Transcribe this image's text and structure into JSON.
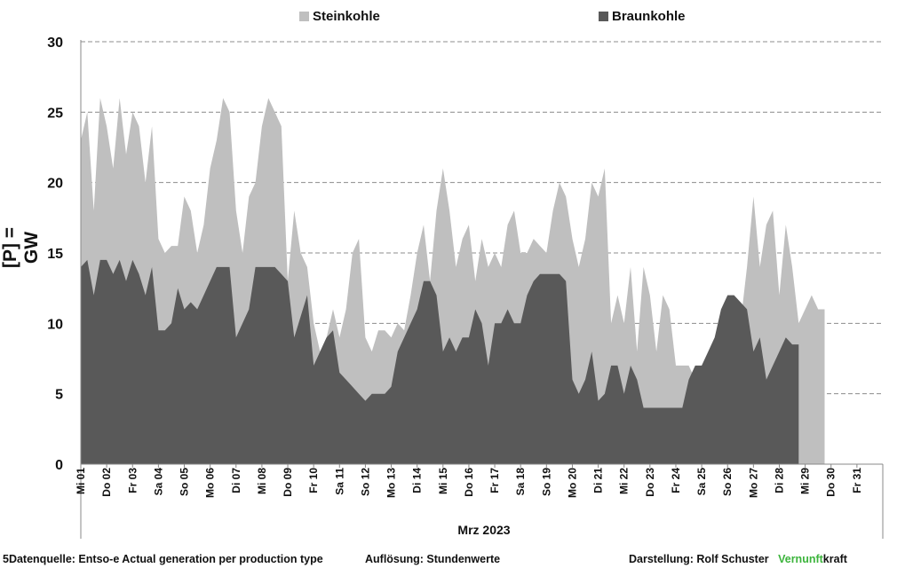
{
  "chart_data": {
    "type": "area",
    "stacked": false,
    "ylabel": "[P]  = GW",
    "xlabel": "Mrz 2023",
    "ylim": [
      0,
      30
    ],
    "yticks": [
      0,
      5,
      10,
      15,
      20,
      25,
      30
    ],
    "grid": true,
    "legend_position": "top",
    "x_tick_labels": [
      "Mi 01",
      "Do 02",
      "Fr 03",
      "Sa 04",
      "So 05",
      "Mo 06",
      "Di 07",
      "Mi 08",
      "Do 09",
      "Fr 10",
      "Sa 11",
      "So 12",
      "Mo 13",
      "Di 14",
      "Mi 15",
      "Do 16",
      "Fr 17",
      "Sa 18",
      "So 19",
      "Mo 20",
      "Di 21",
      "Mi 22",
      "Do 23",
      "Fr 24",
      "Sa 25",
      "So 26",
      "Mo 27",
      "Di 28",
      "Mi 29",
      "Do 30",
      "Fr 31"
    ],
    "x_step_hours": 6,
    "series": [
      {
        "name": "Steinkohle",
        "color": "#bfbfbf",
        "values": [
          23,
          25,
          18,
          26,
          24,
          21,
          26,
          22,
          25,
          24,
          20,
          24,
          16,
          15,
          15.5,
          15.5,
          19,
          18,
          15,
          17,
          21,
          23,
          26,
          25,
          18,
          15,
          19,
          20,
          24,
          26,
          25,
          24,
          13,
          18,
          15,
          14,
          10,
          8,
          9,
          11,
          9,
          11,
          15,
          16,
          9,
          8,
          9.5,
          9.5,
          9,
          10,
          9.5,
          12,
          15,
          17,
          13,
          18,
          21,
          18,
          14,
          16,
          17,
          13,
          16,
          14,
          15,
          14,
          17,
          18,
          15,
          15,
          16,
          15.5,
          15,
          18,
          20,
          19,
          16,
          14,
          16,
          20,
          19,
          21,
          10,
          12,
          10,
          14,
          8,
          14,
          12,
          8,
          12,
          11,
          7,
          7,
          7,
          6,
          6,
          6,
          6,
          7,
          8,
          10,
          10,
          14,
          19,
          14,
          17,
          18,
          12,
          17,
          14,
          10,
          11,
          12,
          11,
          11
        ]
      },
      {
        "name": "Braunkohle",
        "color": "#595959",
        "values": [
          14,
          14.5,
          12,
          14.5,
          14.5,
          13.5,
          14.5,
          13,
          14.5,
          13.5,
          12,
          14,
          9.5,
          9.5,
          10,
          12.5,
          11,
          11.5,
          11,
          12,
          13,
          14,
          14,
          14,
          9,
          10,
          11,
          14,
          14,
          14,
          14,
          13.5,
          13,
          9,
          10.5,
          12,
          7,
          8,
          9,
          9.5,
          6.5,
          6,
          5.5,
          5,
          4.5,
          5,
          5,
          5,
          5.5,
          8,
          9,
          10,
          11,
          13,
          13,
          12,
          8,
          9,
          8,
          9,
          9,
          11,
          10,
          7,
          10,
          10,
          11,
          10,
          10,
          12,
          13,
          13.5,
          13.5,
          13.5,
          13.5,
          13,
          6,
          5,
          6,
          8,
          4.5,
          5,
          7,
          7,
          5,
          7,
          6,
          4,
          4,
          4,
          4,
          4,
          4,
          4,
          6,
          7,
          7,
          8,
          9,
          11,
          12,
          12,
          11.5,
          11,
          8,
          9,
          6,
          7,
          8,
          9,
          8.5,
          8.5
        ]
      }
    ],
    "footer": {
      "source": "5Datenquelle: Entso-e  Actual generation per production type",
      "resolution": "Auflösung: Stundenwerte",
      "author_prefix": "Darstellung:  Rolf Schuster",
      "brand_green": "Vernunft",
      "brand_rest": "kraft"
    }
  }
}
